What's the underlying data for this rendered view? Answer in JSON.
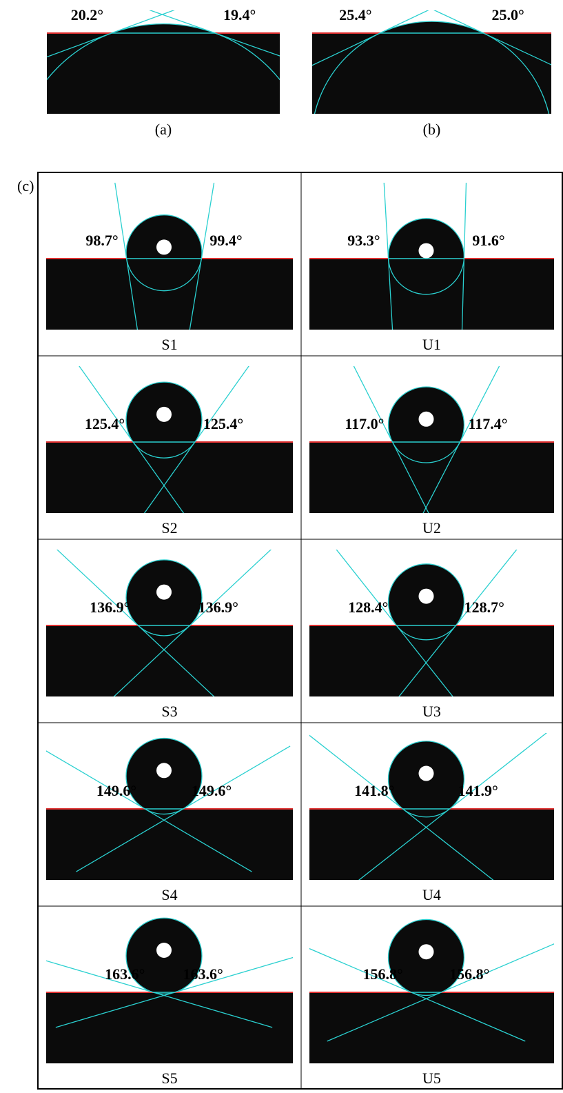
{
  "panels": [
    {
      "label": "(a)",
      "left_angle": "20.2°",
      "right_angle": "19.4°"
    },
    {
      "label": "(b)",
      "left_angle": "25.4°",
      "right_angle": "25.0°"
    }
  ],
  "panel_c": {
    "label": "(c)",
    "cells": [
      {
        "sample": "S1",
        "left_angle": "98.7°",
        "right_angle": "99.4°"
      },
      {
        "sample": "U1",
        "left_angle": "93.3°",
        "right_angle": "91.6°"
      },
      {
        "sample": "S2",
        "left_angle": "125.4°",
        "right_angle": "125.4°"
      },
      {
        "sample": "U2",
        "left_angle": "117.0°",
        "right_angle": "117.4°"
      },
      {
        "sample": "S3",
        "left_angle": "136.9°",
        "right_angle": "136.9°"
      },
      {
        "sample": "U3",
        "left_angle": "128.4°",
        "right_angle": "128.7°"
      },
      {
        "sample": "S4",
        "left_angle": "149.6°",
        "right_angle": "149.6°"
      },
      {
        "sample": "U4",
        "left_angle": "141.8°",
        "right_angle": "141.9°"
      },
      {
        "sample": "S5",
        "left_angle": "163.6°",
        "right_angle": "163.6°"
      },
      {
        "sample": "U5",
        "left_angle": "156.8°",
        "right_angle": "156.8°"
      }
    ]
  }
}
